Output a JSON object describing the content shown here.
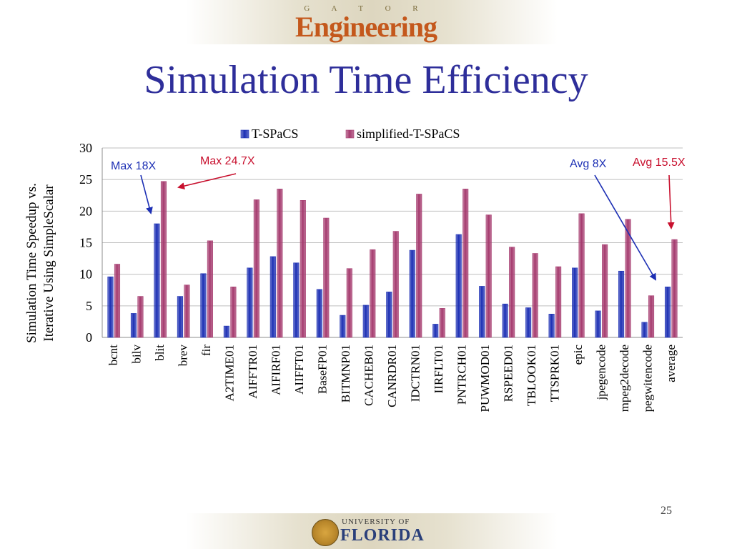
{
  "slide": {
    "header_logo_small": "G A T O R",
    "header_logo_big": "Engineering",
    "title": "Simulation Time Efficiency",
    "footer_logo_small": "UNIVERSITY OF",
    "footer_logo_big": "FLORIDA",
    "page_number": "25"
  },
  "chart_data": {
    "type": "bar",
    "title": "",
    "xlabel": "",
    "ylabel": "Simulation Time Speedup vs. Iterative Using SimpleScalar",
    "ylabel_lines": [
      "Simulation Time Speedup vs.",
      "Iterative Using SimpleScalar"
    ],
    "ylim": [
      0,
      30
    ],
    "yticks": [
      0,
      5,
      10,
      15,
      20,
      25,
      30
    ],
    "grid": true,
    "legend_position": "top",
    "categories": [
      "bcnt",
      "bilv",
      "blit",
      "brev",
      "fir",
      "A2TIME01",
      "AIFFTR01",
      "AIFIRF01",
      "AIIFFT01",
      "BaseFP01",
      "BITMNP01",
      "CACHEB01",
      "CANRDR01",
      "IDCTRN01",
      "IIRFLT01",
      "PNTRCH01",
      "PUWMOD01",
      "RSPEED01",
      "TBLOOK01",
      "TTSPRK01",
      "epic",
      "jpegencode",
      "mpeg2decode",
      "pegwitencode",
      "average"
    ],
    "series": [
      {
        "name": "T-SPaCS",
        "color": "#1c2fb4",
        "values": [
          9.6,
          3.8,
          18.0,
          6.5,
          10.1,
          1.8,
          11.0,
          12.8,
          11.8,
          7.6,
          3.5,
          5.1,
          7.2,
          13.8,
          2.1,
          16.3,
          8.1,
          5.3,
          4.7,
          3.7,
          11.0,
          4.2,
          10.5,
          2.4,
          8.0
        ]
      },
      {
        "name": "simplified-T-SPaCS",
        "color": "#a53a6e",
        "values": [
          11.6,
          6.5,
          24.7,
          8.3,
          15.3,
          8.0,
          21.8,
          23.5,
          21.7,
          18.9,
          10.9,
          13.9,
          16.8,
          22.7,
          4.6,
          23.5,
          19.4,
          14.3,
          13.3,
          11.2,
          19.6,
          14.7,
          18.7,
          6.6,
          15.5
        ]
      }
    ],
    "annotations": [
      {
        "text": "Max 18X",
        "color": "#1c2fb4"
      },
      {
        "text": "Max 24.7X",
        "color": "#c8102e"
      },
      {
        "text": "Avg 8X",
        "color": "#1c2fb4"
      },
      {
        "text": "Avg 15.5X",
        "color": "#c8102e"
      }
    ]
  }
}
